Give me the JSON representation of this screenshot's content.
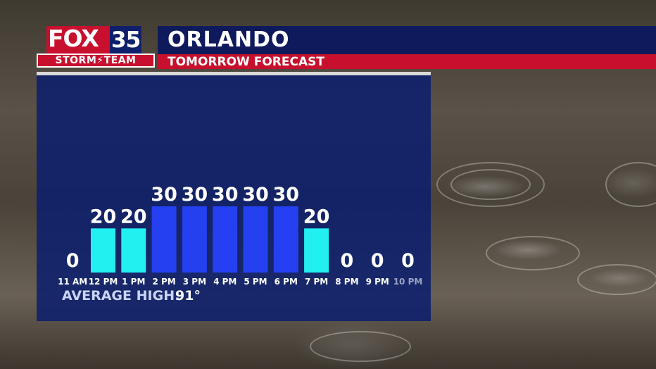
{
  "brand": {
    "logo_word": "FOX",
    "logo_number": "35",
    "team": "STORM⚡TEAM"
  },
  "header": {
    "city": "ORLANDO",
    "subtitle": "TOMORROW FORECAST"
  },
  "footer": {
    "average_high_label": "AVERAGE HIGH:",
    "average_high_value": "91°"
  },
  "colors": {
    "bar_high": "#2540f0",
    "bar_low": "#22f0f0",
    "panel": "#0a1e6e",
    "brand_red": "#c8102e"
  },
  "chart_data": {
    "type": "bar",
    "title": "",
    "categories": [
      "11 AM",
      "12 PM",
      "1 PM",
      "2 PM",
      "3 PM",
      "4 PM",
      "5 PM",
      "6 PM",
      "7 PM",
      "8 PM",
      "9 PM",
      "10 PM"
    ],
    "values": [
      0,
      20,
      20,
      30,
      30,
      30,
      30,
      30,
      20,
      0,
      0,
      0
    ],
    "ylim": [
      0,
      30
    ]
  }
}
